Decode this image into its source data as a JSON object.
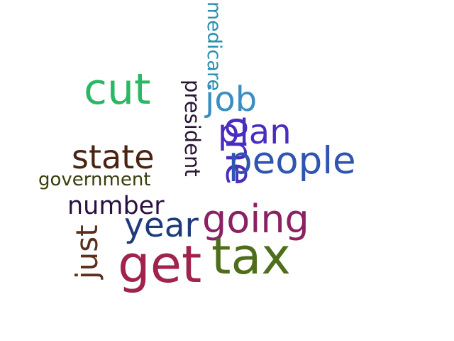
{
  "words": [
    {
      "key": "medicare",
      "text": "medicare",
      "color": "#2a8fb0"
    },
    {
      "key": "cut",
      "text": "cut",
      "color": "#2bb865"
    },
    {
      "key": "president",
      "text": "president",
      "color": "#2a1535"
    },
    {
      "key": "job",
      "text": "job",
      "color": "#3a8ec2"
    },
    {
      "key": "one",
      "text": "one",
      "color": "#4a2cc0"
    },
    {
      "key": "plan",
      "text": "plan",
      "color": "#4a2cc0"
    },
    {
      "key": "state",
      "text": "state",
      "color": "#4a2412"
    },
    {
      "key": "people",
      "text": "people",
      "color": "#2f55b0"
    },
    {
      "key": "government",
      "text": "government",
      "color": "#3a3d0c"
    },
    {
      "key": "number",
      "text": "number",
      "color": "#2a1040"
    },
    {
      "key": "going",
      "text": "going",
      "color": "#8a2162"
    },
    {
      "key": "year",
      "text": "year",
      "color": "#1e3a7a"
    },
    {
      "key": "just",
      "text": "just",
      "color": "#5b2f1a"
    },
    {
      "key": "get",
      "text": "get",
      "color": "#a0234c"
    },
    {
      "key": "tax",
      "text": "tax",
      "color": "#4e6e1b"
    }
  ]
}
